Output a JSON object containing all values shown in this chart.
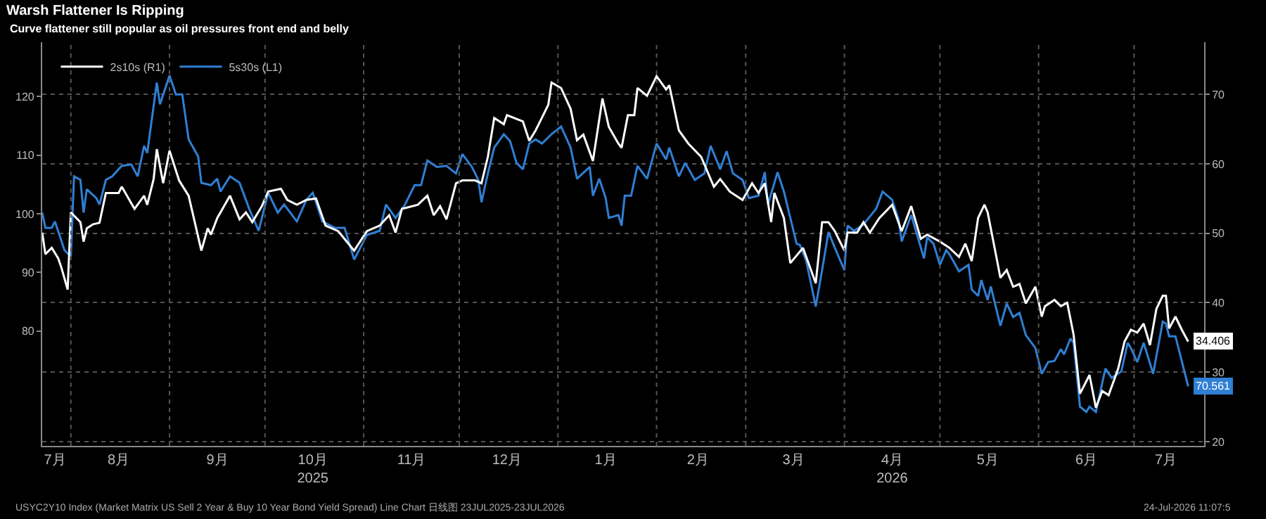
{
  "chart_data": {
    "type": "line",
    "title": "Warsh Flattener Is Ripping",
    "subtitle": "Curve flattener still popular as oil pressures front end and belly",
    "annotations": [
      "USYC2Y10 Index (Market Matrix US Sell 2 Year & Buy 10 Year Bond Yield Spread) Line Chart 日线图 23JUL2025-23JUL2026",
      "24-Jul-2026 11:07:5"
    ],
    "legend": "top left",
    "grid": true,
    "xlim": [
      "2025-07-23",
      "2026-07-23"
    ],
    "xticks": [
      {
        "value": "2025-07-27",
        "label": "7月"
      },
      {
        "value": "2025-08-01",
        "label": null
      },
      {
        "value": "2025-08-16",
        "label": "8月"
      },
      {
        "value": "2025-09-01",
        "label": null
      },
      {
        "value": "2025-09-16",
        "label": "9月"
      },
      {
        "value": "2025-10-01",
        "label": null
      },
      {
        "value": "2025-10-16",
        "label": "10月\n2025"
      },
      {
        "value": "2025-11-01",
        "label": null
      },
      {
        "value": "2025-11-16",
        "label": "11月"
      },
      {
        "value": "2025-12-01",
        "label": null
      },
      {
        "value": "2025-12-16",
        "label": "12月"
      },
      {
        "value": "2026-01-01",
        "label": null
      },
      {
        "value": "2026-01-16",
        "label": "1月"
      },
      {
        "value": "2026-02-01",
        "label": null
      },
      {
        "value": "2026-02-14",
        "label": "2月"
      },
      {
        "value": "2026-03-01",
        "label": null
      },
      {
        "value": "2026-03-16",
        "label": "3月"
      },
      {
        "value": "2026-04-01",
        "label": null
      },
      {
        "value": "2026-04-16",
        "label": "4月\n2026"
      },
      {
        "value": "2026-05-01",
        "label": null
      },
      {
        "value": "2026-05-16",
        "label": "5月"
      },
      {
        "value": "2026-06-01",
        "label": null
      },
      {
        "value": "2026-06-16",
        "label": "6月"
      },
      {
        "value": "2026-07-01",
        "label": null
      },
      {
        "value": "2026-07-11",
        "label": "7月"
      }
    ],
    "ylim": [
      60.4,
      129.3
    ],
    "yticks": [
      80,
      90,
      100,
      110,
      120
    ],
    "y2lim": [
      19.4,
      77.5
    ],
    "y2ticks": [
      20,
      30,
      40,
      50,
      60,
      70
    ],
    "series": [
      {
        "name": "2s10s (R1)",
        "color": "#ffffff",
        "axis": "y2",
        "x": [
          "2025-07-23",
          "2025-07-24",
          "2025-07-26",
          "2025-07-28",
          "2025-07-29",
          "2025-07-31",
          "2025-08-01",
          "2025-08-04",
          "2025-08-05",
          "2025-08-06",
          "2025-08-08",
          "2025-08-10",
          "2025-08-12",
          "2025-08-16",
          "2025-08-17",
          "2025-08-21",
          "2025-08-24",
          "2025-08-25",
          "2025-08-27",
          "2025-08-28",
          "2025-08-30",
          "2025-09-01",
          "2025-09-04",
          "2025-09-07",
          "2025-09-11",
          "2025-09-13",
          "2025-09-14",
          "2025-09-16",
          "2025-09-20",
          "2025-09-23",
          "2025-09-25",
          "2025-09-27",
          "2025-09-30",
          "2025-10-02",
          "2025-10-06",
          "2025-10-08",
          "2025-10-11",
          "2025-10-14",
          "2025-10-17",
          "2025-10-20",
          "2025-10-24",
          "2025-10-29",
          "2025-11-02",
          "2025-11-06",
          "2025-11-09",
          "2025-11-11",
          "2025-11-13",
          "2025-11-18",
          "2025-11-21",
          "2025-11-23",
          "2025-11-25",
          "2025-11-27",
          "2025-11-30",
          "2025-12-02",
          "2025-12-06",
          "2025-12-08",
          "2025-12-10",
          "2025-12-12",
          "2025-12-15",
          "2025-12-16",
          "2025-12-21",
          "2025-12-23",
          "2025-12-25",
          "2025-12-29",
          "2025-12-30",
          "2026-01-02",
          "2026-01-05",
          "2026-01-07",
          "2026-01-09",
          "2026-01-12",
          "2026-01-15",
          "2026-01-17",
          "2026-01-20",
          "2026-01-21",
          "2026-01-23",
          "2026-01-25",
          "2026-01-26",
          "2026-01-29",
          "2026-02-01",
          "2026-02-04",
          "2026-02-05",
          "2026-02-08",
          "2026-02-11",
          "2026-02-15",
          "2026-02-19",
          "2026-02-21",
          "2026-02-24",
          "2026-02-28",
          "2026-03-03",
          "2026-03-05",
          "2026-03-07",
          "2026-03-09",
          "2026-03-10",
          "2026-03-13",
          "2026-03-15",
          "2026-03-19",
          "2026-03-23",
          "2026-03-25",
          "2026-03-27",
          "2026-03-29",
          "2026-04-01",
          "2026-04-02",
          "2026-04-05",
          "2026-04-07",
          "2026-04-09",
          "2026-04-12",
          "2026-04-16",
          "2026-04-19",
          "2026-04-22",
          "2026-04-25",
          "2026-04-27",
          "2026-05-01",
          "2026-05-04",
          "2026-05-07",
          "2026-05-09",
          "2026-05-11",
          "2026-05-13",
          "2026-05-15",
          "2026-05-16",
          "2026-05-19",
          "2026-05-20",
          "2026-05-22",
          "2026-05-24",
          "2026-05-26",
          "2026-05-28",
          "2026-05-31",
          "2026-06-02",
          "2026-06-03",
          "2026-06-06",
          "2026-06-08",
          "2026-06-10",
          "2026-06-12",
          "2026-06-14",
          "2026-06-17",
          "2026-06-19",
          "2026-06-21",
          "2026-06-23",
          "2026-06-26",
          "2026-06-28",
          "2026-06-30",
          "2026-07-02",
          "2026-07-04",
          "2026-07-06",
          "2026-07-08",
          "2026-07-10",
          "2026-07-11",
          "2026-07-12",
          "2026-07-14",
          "2026-07-16",
          "2026-07-18"
        ],
        "values": [
          50.1,
          47.0,
          47.9,
          46.4,
          45.1,
          41.9,
          53.0,
          51.6,
          48.8,
          50.7,
          51.3,
          51.5,
          55.8,
          55.8,
          56.7,
          53.5,
          55.4,
          54.1,
          57.8,
          62.1,
          57.2,
          61.9,
          57.6,
          55.4,
          47.5,
          50.7,
          49.8,
          52.2,
          55.4,
          52.0,
          53.0,
          51.6,
          53.9,
          56.0,
          56.4,
          54.8,
          54.1,
          54.8,
          55.0,
          51.1,
          50.3,
          47.5,
          50.3,
          51.1,
          52.6,
          50.1,
          53.5,
          54.1,
          55.4,
          52.6,
          53.9,
          52.0,
          57.2,
          57.6,
          57.6,
          57.2,
          61.0,
          66.6,
          65.7,
          67.0,
          66.1,
          63.3,
          64.8,
          68.5,
          71.7,
          70.9,
          67.9,
          63.4,
          64.2,
          60.4,
          69.4,
          65.3,
          62.9,
          62.3,
          67.0,
          67.0,
          70.9,
          69.8,
          72.6,
          70.7,
          71.3,
          64.8,
          62.9,
          61.0,
          56.7,
          57.8,
          56.0,
          54.8,
          57.2,
          55.8,
          57.2,
          51.6,
          55.8,
          52.2,
          45.7,
          47.9,
          42.8,
          51.6,
          51.6,
          50.3,
          47.5,
          50.1,
          50.1,
          51.6,
          50.1,
          52.2,
          54.1,
          50.3,
          53.9,
          49.2,
          49.8,
          48.8,
          47.9,
          46.6,
          48.5,
          46.0,
          52.2,
          54.1,
          53.0,
          46.0,
          43.6,
          44.7,
          42.3,
          42.7,
          39.9,
          42.3,
          38.0,
          39.5,
          40.4,
          39.5,
          40.0,
          35.4,
          26.9,
          29.6,
          24.9,
          27.3,
          26.7,
          30.5,
          34.4,
          36.1,
          35.7,
          37.0,
          33.9,
          39.1,
          41.0,
          41.0,
          36.3,
          38.0,
          36.1,
          34.406
        ],
        "value_labels": [
          null,
          null,
          null,
          null,
          null,
          null,
          null,
          null,
          null,
          null,
          null,
          null,
          null,
          null,
          null,
          null,
          null,
          null,
          null,
          null,
          null,
          null,
          null,
          null,
          null,
          null,
          null,
          null,
          null,
          null,
          null,
          null,
          null,
          null,
          null,
          null,
          null,
          null,
          null,
          null,
          null,
          null,
          null,
          null,
          null,
          null,
          null,
          null,
          null,
          null,
          null,
          null,
          null,
          null,
          null,
          null,
          null,
          null,
          null,
          null,
          null,
          null,
          null,
          null,
          null,
          null,
          null,
          null,
          null,
          null,
          null,
          null,
          null,
          null,
          null,
          null,
          null,
          null,
          null,
          null,
          null,
          null,
          null,
          null,
          null,
          null,
          null,
          null,
          null,
          null,
          null,
          null,
          null,
          null,
          null,
          null,
          null,
          null,
          null,
          null,
          null,
          null,
          null,
          null,
          null,
          null,
          null,
          null,
          null,
          null,
          null,
          null,
          null,
          null,
          null,
          null,
          null,
          null,
          null,
          null,
          null,
          null,
          null,
          null,
          null,
          null,
          null,
          null,
          null,
          null,
          null,
          null,
          null,
          null,
          null,
          null,
          null,
          null,
          null,
          null,
          null,
          null,
          null,
          null,
          null,
          null,
          null,
          null,
          null,
          "34.406"
        ]
      },
      {
        "name": "5s30s (L1)",
        "color": "#2f7fd4",
        "x": [
          "2025-07-23",
          "2025-07-24",
          "2025-07-26",
          "2025-07-27",
          "2025-07-30",
          "2025-08-01",
          "2025-08-02",
          "2025-08-04",
          "2025-08-05",
          "2025-08-06",
          "2025-08-09",
          "2025-08-10",
          "2025-08-12",
          "2025-08-14",
          "2025-08-17",
          "2025-08-20",
          "2025-08-22",
          "2025-08-24",
          "2025-08-25",
          "2025-08-28",
          "2025-08-29",
          "2025-09-01",
          "2025-09-03",
          "2025-09-05",
          "2025-09-07",
          "2025-09-10",
          "2025-09-11",
          "2025-09-14",
          "2025-09-16",
          "2025-09-17",
          "2025-09-20",
          "2025-09-23",
          "2025-09-26",
          "2025-09-29",
          "2025-10-02",
          "2025-10-05",
          "2025-10-07",
          "2025-10-11",
          "2025-10-14",
          "2025-10-16",
          "2025-10-19",
          "2025-10-23",
          "2025-10-26",
          "2025-10-29",
          "2025-11-02",
          "2025-11-06",
          "2025-11-08",
          "2025-11-11",
          "2025-11-14",
          "2025-11-17",
          "2025-11-19",
          "2025-11-21",
          "2025-11-24",
          "2025-11-27",
          "2025-11-30",
          "2025-12-02",
          "2025-12-05",
          "2025-12-07",
          "2025-12-08",
          "2025-12-10",
          "2025-12-12",
          "2025-12-15",
          "2025-12-17",
          "2025-12-19",
          "2025-12-21",
          "2025-12-23",
          "2025-12-25",
          "2025-12-27",
          "2025-12-30",
          "2026-01-02",
          "2026-01-05",
          "2026-01-07",
          "2026-01-11",
          "2026-01-12",
          "2026-01-14",
          "2026-01-16",
          "2026-01-17",
          "2026-01-20",
          "2026-01-21",
          "2026-01-22",
          "2026-01-24",
          "2026-01-26",
          "2026-01-29",
          "2026-02-01",
          "2026-02-04",
          "2026-02-05",
          "2026-02-08",
          "2026-02-10",
          "2026-02-13",
          "2026-02-16",
          "2026-02-18",
          "2026-02-21",
          "2026-02-23",
          "2026-02-25",
          "2026-02-28",
          "2026-03-02",
          "2026-03-05",
          "2026-03-07",
          "2026-03-08",
          "2026-03-11",
          "2026-03-13",
          "2026-03-17",
          "2026-03-18",
          "2026-03-20",
          "2026-03-23",
          "2026-03-25",
          "2026-03-27",
          "2026-03-29",
          "2026-04-01",
          "2026-04-02",
          "2026-04-04",
          "2026-04-07",
          "2026-04-11",
          "2026-04-13",
          "2026-04-16",
          "2026-04-18",
          "2026-04-19",
          "2026-04-22",
          "2026-04-26",
          "2026-04-27",
          "2026-04-29",
          "2026-05-01",
          "2026-05-03",
          "2026-05-04",
          "2026-05-07",
          "2026-05-10",
          "2026-05-11",
          "2026-05-13",
          "2026-05-14",
          "2026-05-16",
          "2026-05-17",
          "2026-05-20",
          "2026-05-22",
          "2026-05-24",
          "2026-05-26",
          "2026-05-28",
          "2026-05-31",
          "2026-06-02",
          "2026-06-04",
          "2026-06-06",
          "2026-06-08",
          "2026-06-09",
          "2026-06-11",
          "2026-06-12",
          "2026-06-14",
          "2026-06-16",
          "2026-06-17",
          "2026-06-19",
          "2026-06-22",
          "2026-06-24",
          "2026-06-27",
          "2026-06-29",
          "2026-06-30",
          "2026-07-02",
          "2026-07-04",
          "2026-07-07",
          "2026-07-10",
          "2026-07-11",
          "2026-07-12",
          "2026-07-14",
          "2026-07-18"
        ],
        "values": [
          100.2,
          97.6,
          97.6,
          98.7,
          93.8,
          92.7,
          106.4,
          105.8,
          100.2,
          104.2,
          102.7,
          101.6,
          105.8,
          106.4,
          108.2,
          108.4,
          106.4,
          111.6,
          110.4,
          122.4,
          118.7,
          123.6,
          120.4,
          120.4,
          112.7,
          109.8,
          105.3,
          104.9,
          106.0,
          103.8,
          106.4,
          105.3,
          100.9,
          97.1,
          103.6,
          100.2,
          101.6,
          98.7,
          102.4,
          103.6,
          98.7,
          97.6,
          97.6,
          92.2,
          96.4,
          97.1,
          101.6,
          99.3,
          101.6,
          104.9,
          104.9,
          109.1,
          108.0,
          108.2,
          106.9,
          110.2,
          108.0,
          105.8,
          102.0,
          106.9,
          111.3,
          113.6,
          112.4,
          108.7,
          107.6,
          112.0,
          112.7,
          112.0,
          113.6,
          114.9,
          111.3,
          106.0,
          108.0,
          103.1,
          106.0,
          102.7,
          99.3,
          99.8,
          98.0,
          103.1,
          103.1,
          108.2,
          106.0,
          112.0,
          109.3,
          111.3,
          106.4,
          108.7,
          105.8,
          106.9,
          111.6,
          107.6,
          110.7,
          106.9,
          105.8,
          102.7,
          103.1,
          107.1,
          101.6,
          107.1,
          103.8,
          94.9,
          94.7,
          92.0,
          84.2,
          90.4,
          96.9,
          94.2,
          90.4,
          98.0,
          97.1,
          98.2,
          100.9,
          103.8,
          102.4,
          99.1,
          95.3,
          99.8,
          92.4,
          96.0,
          94.9,
          91.3,
          93.8,
          93.1,
          90.2,
          91.3,
          87.1,
          86.0,
          88.7,
          85.3,
          87.6,
          80.9,
          84.7,
          82.4,
          83.1,
          79.3,
          77.1,
          72.7,
          74.7,
          74.9,
          76.9,
          76.0,
          78.7,
          78.0,
          67.1,
          66.2,
          67.1,
          66.2,
          73.6,
          72.0,
          73.1,
          78.0,
          77.1,
          74.7,
          78.0,
          72.7,
          81.6,
          81.3,
          79.1,
          79.1,
          70.561
        ],
        "value_labels": [
          null,
          null,
          null,
          null,
          null,
          null,
          null,
          null,
          null,
          null,
          null,
          null,
          null,
          null,
          null,
          null,
          null,
          null,
          null,
          null,
          null,
          null,
          null,
          null,
          null,
          null,
          null,
          null,
          null,
          null,
          null,
          null,
          null,
          null,
          null,
          null,
          null,
          null,
          null,
          null,
          null,
          null,
          null,
          null,
          null,
          null,
          null,
          null,
          null,
          null,
          null,
          null,
          null,
          null,
          null,
          null,
          null,
          null,
          null,
          null,
          null,
          null,
          null,
          null,
          null,
          null,
          null,
          null,
          null,
          null,
          null,
          null,
          null,
          null,
          null,
          null,
          null,
          null,
          null,
          null,
          null,
          null,
          null,
          null,
          null,
          null,
          null,
          null,
          null,
          null,
          null,
          null,
          null,
          null,
          null,
          null,
          null,
          null,
          null,
          null,
          null,
          null,
          null,
          null,
          null,
          null,
          null,
          null,
          null,
          null,
          null,
          null,
          null,
          null,
          null,
          null,
          null,
          null,
          null,
          null,
          null,
          null,
          null,
          null,
          null,
          null,
          null,
          null,
          null,
          null,
          null,
          null,
          null,
          null,
          null,
          null,
          null,
          null,
          null,
          null,
          null,
          null,
          null,
          null,
          null,
          null,
          null,
          null,
          null,
          null,
          null,
          null,
          null,
          null,
          null,
          null,
          null,
          null,
          null,
          null,
          "70.561"
        ]
      }
    ]
  }
}
